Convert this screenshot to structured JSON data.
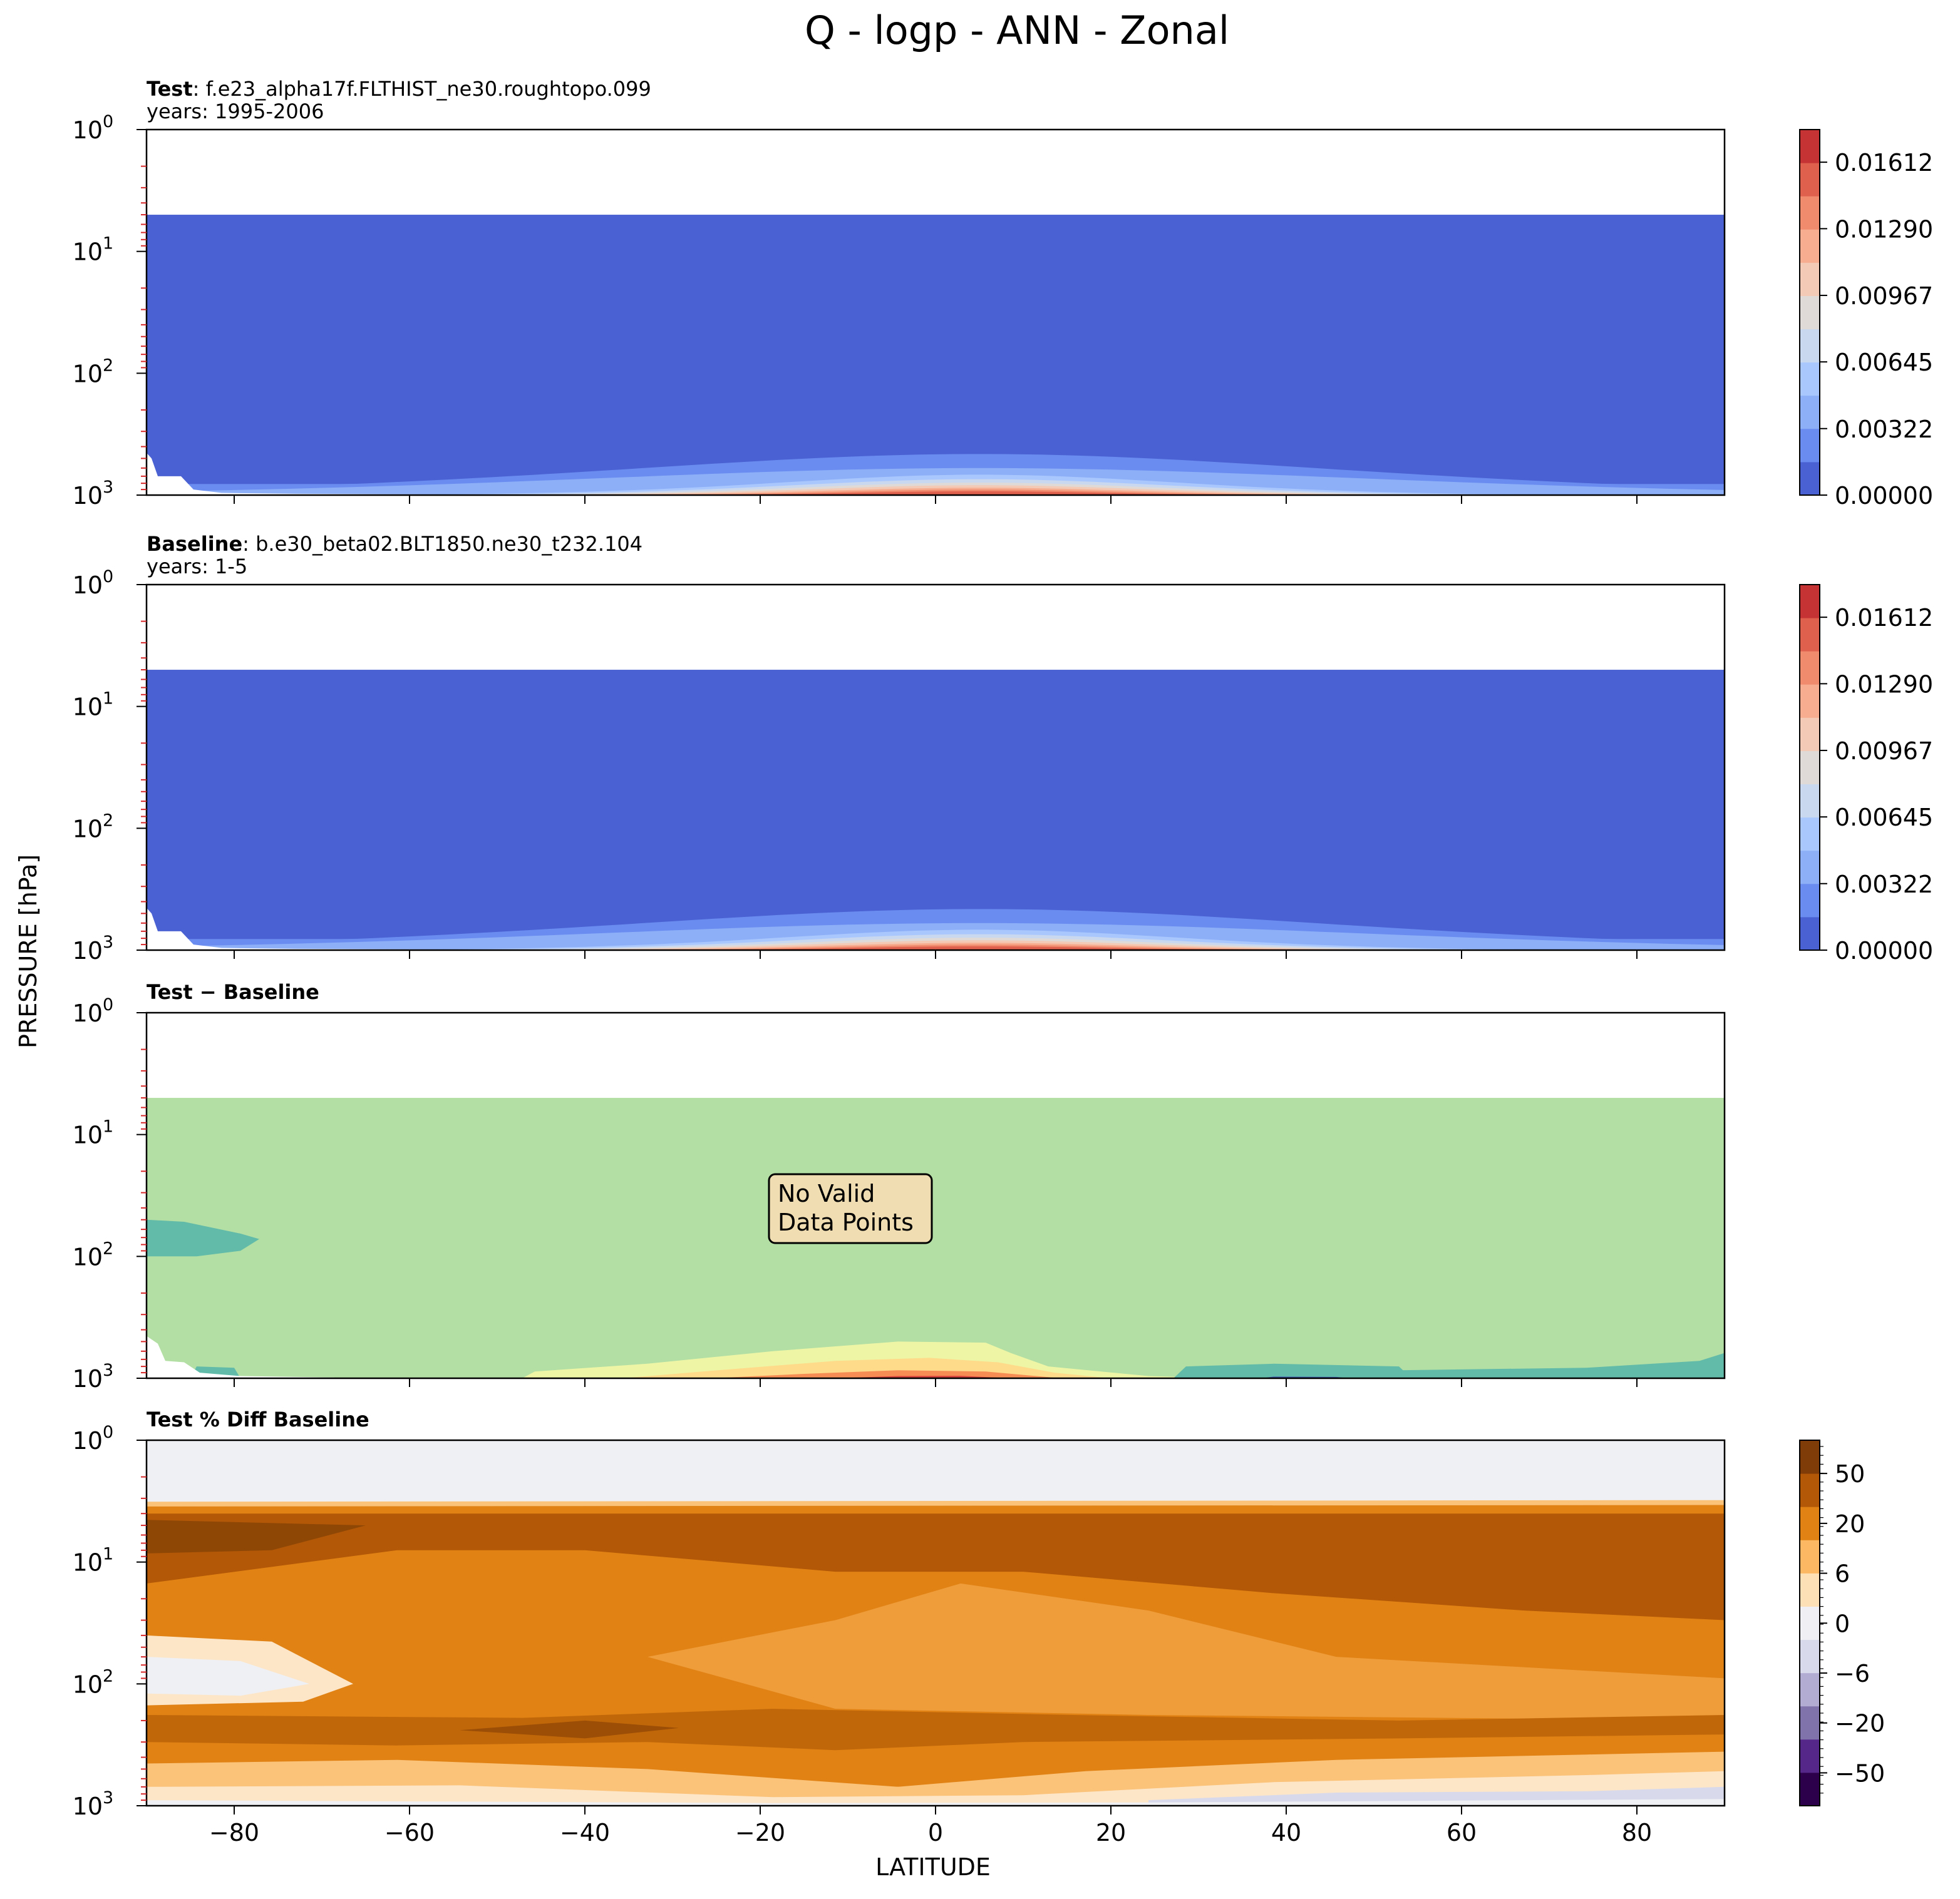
{
  "figure": {
    "title": "Q - logp - ANN - Zonal"
  },
  "chart_data": [
    {
      "type": "heatmap",
      "name": "test",
      "header_bold": "Test",
      "header_text": ": f.e23_alpha17f.FLTHIST_ne30.roughtopo.099",
      "header_years": "years: 1995-2006",
      "x_range": [
        -90,
        90
      ],
      "y_range_hPa": [
        1000,
        1
      ],
      "y_scale": "log",
      "y_ticks": [
        {
          "v": 1,
          "label": "10",
          "exp": "0"
        },
        {
          "v": 10,
          "label": "10",
          "exp": "1"
        },
        {
          "v": 100,
          "label": "10",
          "exp": "2"
        },
        {
          "v": 1000,
          "label": "10",
          "exp": "3"
        }
      ],
      "data_top_hPa": 5,
      "x_ticks": [
        -80,
        -60,
        -40,
        -20,
        0,
        20,
        40,
        60,
        80
      ],
      "show_x_tick_labels": false,
      "colorbar": {
        "colors": [
          "#4961d2",
          "#6a8bef",
          "#8caff8",
          "#aac7fd",
          "#c9d8ef",
          "#dfdad8",
          "#f2cab5",
          "#f7ad90",
          "#f08b6e",
          "#de604d",
          "#c53334"
        ],
        "tick_labels": [
          "0.00000",
          "0.00322",
          "0.00645",
          "0.00967",
          "0.01290",
          "0.01612"
        ],
        "tick_values": [
          0.0,
          0.00322,
          0.00645,
          0.00967,
          0.0129,
          0.01612
        ],
        "range": [
          0.0,
          0.0177
        ]
      },
      "profile": {
        "lat": [
          -90,
          -80,
          -60,
          -40,
          -20,
          0,
          6,
          20,
          40,
          60,
          80,
          90
        ],
        "boundary_hPa_peak": 450,
        "layer_colors_bottom_up": [
          "#c53334",
          "#de604d",
          "#f08b6e",
          "#f7ad90",
          "#f2cab5",
          "#dfdad8",
          "#c9d8ef",
          "#aac7fd",
          "#8caff8",
          "#6a8bef"
        ]
      }
    },
    {
      "type": "heatmap",
      "name": "baseline",
      "header_bold": "Baseline",
      "header_text": ": b.e30_beta02.BLT1850.ne30_t232.104",
      "header_years": "years: 1-5",
      "x_range": [
        -90,
        90
      ],
      "y_range_hPa": [
        1000,
        1
      ],
      "y_scale": "log",
      "data_top_hPa": 5,
      "x_ticks": [
        -80,
        -60,
        -40,
        -20,
        0,
        20,
        40,
        60,
        80
      ],
      "show_x_tick_labels": false,
      "colorbar": {
        "colors": [
          "#4961d2",
          "#6a8bef",
          "#8caff8",
          "#aac7fd",
          "#c9d8ef",
          "#dfdad8",
          "#f2cab5",
          "#f7ad90",
          "#f08b6e",
          "#de604d",
          "#c53334"
        ],
        "tick_labels": [
          "0.00000",
          "0.00322",
          "0.00645",
          "0.00967",
          "0.01290",
          "0.01612"
        ],
        "tick_values": [
          0.0,
          0.00322,
          0.00645,
          0.00967,
          0.0129,
          0.01612
        ],
        "range": [
          0.0,
          0.0177
        ]
      }
    },
    {
      "type": "heatmap",
      "name": "difference",
      "header_bold": "Test − Baseline",
      "x_range": [
        -90,
        90
      ],
      "y_range_hPa": [
        1000,
        1
      ],
      "y_scale": "log",
      "data_top_hPa": 5,
      "x_ticks": [
        -80,
        -60,
        -40,
        -20,
        0,
        20,
        40,
        60,
        80
      ],
      "show_x_tick_labels": false,
      "background_color": "#b3dfa4",
      "annotation": [
        "No Valid",
        "Data Points"
      ],
      "annotation_box_color": "#f0deb2",
      "feature_colors": {
        "negative": "#62bba9",
        "positive_low": "#eef6a6",
        "positive_mid": "#fddb8b",
        "positive_high": "#f68d55",
        "positive_max": "#d8433d",
        "strong_negative": "#3f58b0"
      }
    },
    {
      "type": "heatmap",
      "name": "percent_difference",
      "header_bold": "Test % Diff Baseline",
      "x_range": [
        -90,
        90
      ],
      "y_range_hPa": [
        1000,
        1
      ],
      "y_scale": "log",
      "x_ticks": [
        -80,
        -60,
        -40,
        -20,
        0,
        20,
        40,
        60,
        80
      ],
      "x_tick_labels": [
        "−80",
        "−60",
        "−40",
        "−20",
        "0",
        "20",
        "40",
        "60",
        "80"
      ],
      "show_x_tick_labels": true,
      "xlabel": "LATITUDE",
      "ylabel": "PRESSURE [hPa]",
      "top_band_color": "#eff0f3",
      "colorbar": {
        "colors": [
          "#2d004b",
          "#542788",
          "#8073ac",
          "#b2abd2",
          "#d8daeb",
          "#f0f0f4",
          "#fee0b6",
          "#fdb863",
          "#e08214",
          "#b35806",
          "#7f3b08"
        ],
        "tick_labels": [
          "−50",
          "−20",
          "−6",
          "0",
          "6",
          "20",
          "50"
        ],
        "tick_values": [
          -50,
          -20,
          -6,
          0,
          6,
          20,
          50
        ],
        "display_scale": "symlog"
      }
    }
  ]
}
